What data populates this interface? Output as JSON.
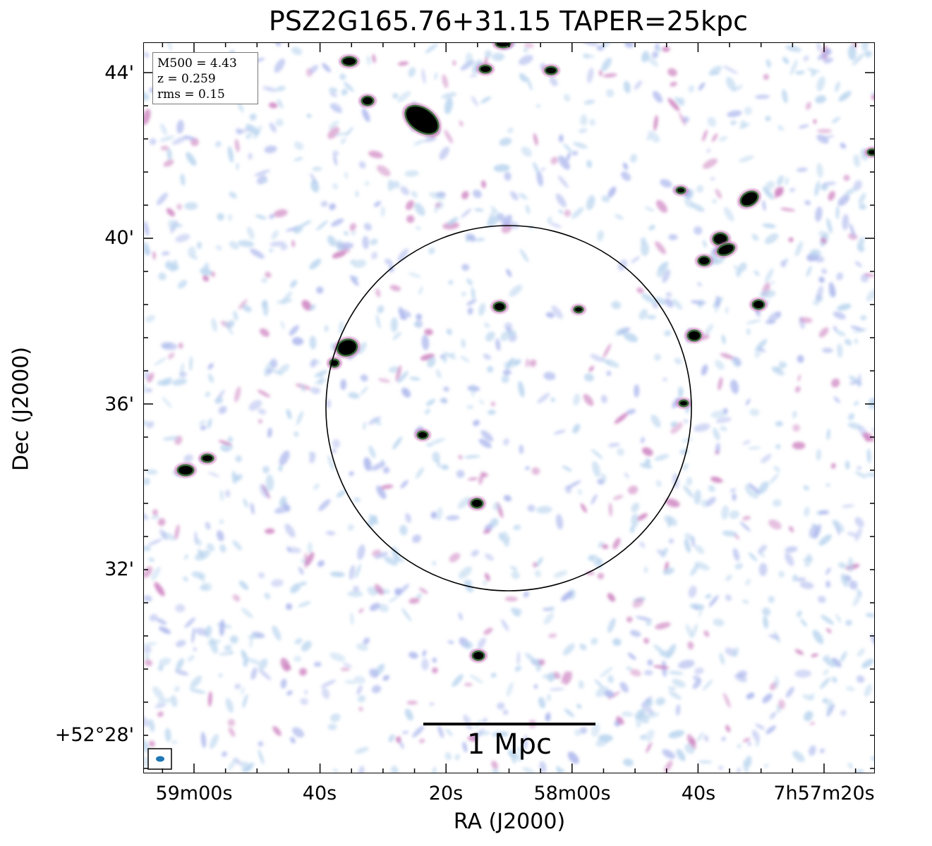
{
  "title": "PSZ2G165.76+31.15 TAPER=25kpc",
  "axes": {
    "xlabel": "RA (J2000)",
    "ylabel": "Dec (J2000)",
    "yticks": [
      "44'",
      "40'",
      "36'",
      "32'",
      "+52°28'"
    ],
    "xticks": [
      "59m00s",
      "40s",
      "20s",
      "58m00s",
      "40s",
      "7h57m20s"
    ]
  },
  "info_box": {
    "line1": "M500 = 4.43",
    "line2": "z = 0.259",
    "line3": "rms = 0.15"
  },
  "scale_bar": {
    "label": "1 Mpc"
  },
  "colors": {
    "noise_light": "#b8d4ee",
    "noise_mid": "#a9b4ec",
    "noise_pink": "#cc7fbf",
    "source_green": "#3a6b3a",
    "source_core": "#000000",
    "beam": "#1f77b4"
  }
}
